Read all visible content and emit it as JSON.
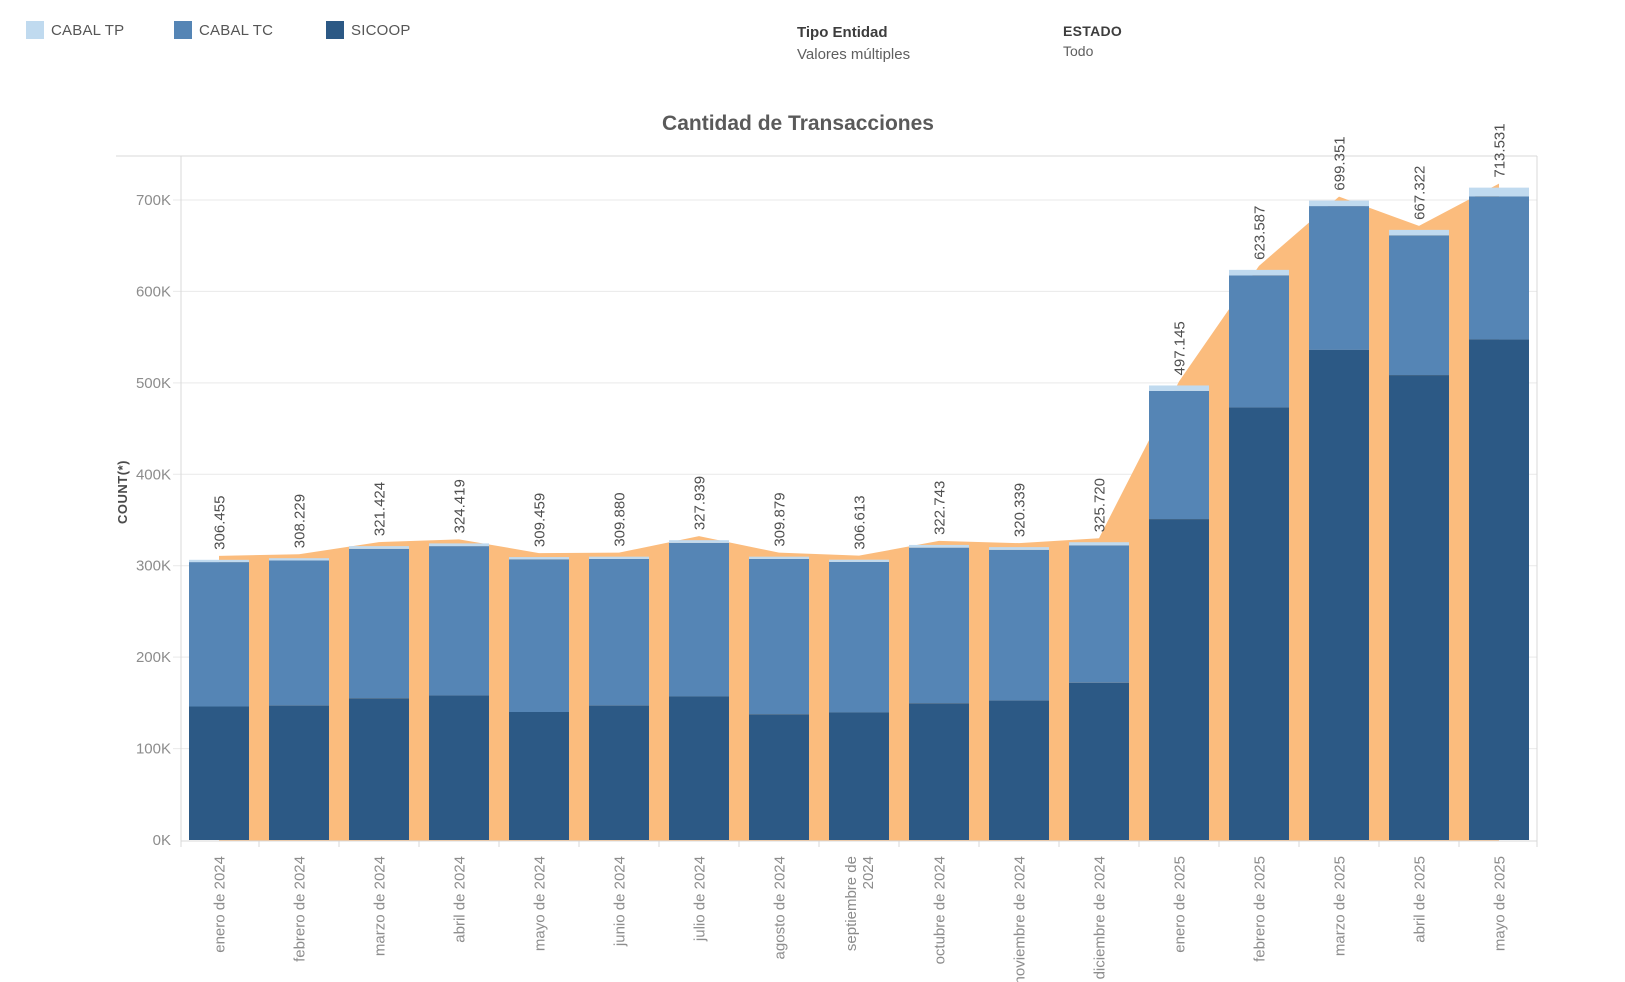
{
  "legend": {
    "items": [
      {
        "label": "CABAL TP",
        "color": "#C0DAEF"
      },
      {
        "label": "CABAL TC",
        "color": "#5585B5"
      },
      {
        "label": "SICOOP",
        "color": "#2C5985"
      }
    ]
  },
  "filters": [
    {
      "label": "Tipo Entidad",
      "value": "Valores múltiples"
    },
    {
      "label": "ESTADO",
      "value": "Todo"
    }
  ],
  "chart_data": {
    "type": "bar",
    "subtype": "stacked-bars-with-area-overlay",
    "title": "Cantidad de Transacciones",
    "ylabel": "COUNT(*)",
    "xlabel": "",
    "grid": true,
    "legend_position": "top-left",
    "ylim": [
      0,
      750000
    ],
    "y_ticks": [
      "0K",
      "100K",
      "200K",
      "300K",
      "400K",
      "500K",
      "600K",
      "700K"
    ],
    "categories": [
      "enero de 2024",
      "febrero de 2024",
      "marzo de 2024",
      "abril de 2024",
      "mayo de 2024",
      "junio de 2024",
      "julio de 2024",
      "agosto de 2024",
      "septiembre de 2024",
      "octubre de 2024",
      "noviembre de 2024",
      "diciembre de 2024",
      "enero de 2025",
      "febrero de 2025",
      "marzo de 2025",
      "abril de 2025",
      "mayo de 2025"
    ],
    "category_label_lines": [
      [
        "enero de 2024"
      ],
      [
        "febrero de 2024"
      ],
      [
        "marzo de 2024"
      ],
      [
        "abril de 2024"
      ],
      [
        "mayo de 2024"
      ],
      [
        "junio de 2024"
      ],
      [
        "julio de 2024"
      ],
      [
        "agosto de 2024"
      ],
      [
        "septiembre de",
        "2024"
      ],
      [
        "octubre de 2024"
      ],
      [
        "noviembre de 2024"
      ],
      [
        "diciembre de 2024"
      ],
      [
        "enero de 2025"
      ],
      [
        "febrero de 2025"
      ],
      [
        "marzo de 2025"
      ],
      [
        "abril de 2025"
      ],
      [
        "mayo de 2025"
      ]
    ],
    "series": [
      {
        "name": "SICOOP",
        "color": "#2C5985",
        "values": [
          146000,
          147000,
          155000,
          158000,
          140000,
          147000,
          157000,
          137500,
          139500,
          149500,
          152500,
          172000,
          351000,
          473000,
          536000,
          508500,
          547500
        ]
      },
      {
        "name": "CABAL TC",
        "color": "#5585B5",
        "values": [
          157955,
          158729,
          163424,
          163419,
          166959,
          160380,
          167939,
          169879,
          164613,
          170243,
          164839,
          150220,
          140145,
          144587,
          157351,
          152822,
          156531
        ]
      },
      {
        "name": "CABAL TP",
        "color": "#C0DAEF",
        "values": [
          2500,
          2500,
          3000,
          3000,
          2500,
          2500,
          3000,
          2500,
          2500,
          3000,
          3000,
          3500,
          6000,
          6000,
          6000,
          6000,
          9500
        ]
      }
    ],
    "totals": [
      306455,
      308229,
      321424,
      324419,
      309459,
      309880,
      327939,
      309879,
      306613,
      322743,
      320339,
      325720,
      497145,
      623587,
      699351,
      667322,
      713531
    ],
    "total_labels": [
      "306.455",
      "308.229",
      "321.424",
      "324.419",
      "309.459",
      "309.880",
      "327.939",
      "309.879",
      "306.613",
      "322.743",
      "320.339",
      "325.720",
      "497.145",
      "623.587",
      "699.351",
      "667.322",
      "713.531"
    ],
    "area_overlay": {
      "name": "total-area",
      "color": "#FBBC7D",
      "values": [
        306455,
        308229,
        321424,
        324419,
        309459,
        309880,
        327939,
        309879,
        306613,
        322743,
        320339,
        325720,
        497145,
        623587,
        699351,
        667322,
        713531
      ]
    }
  }
}
